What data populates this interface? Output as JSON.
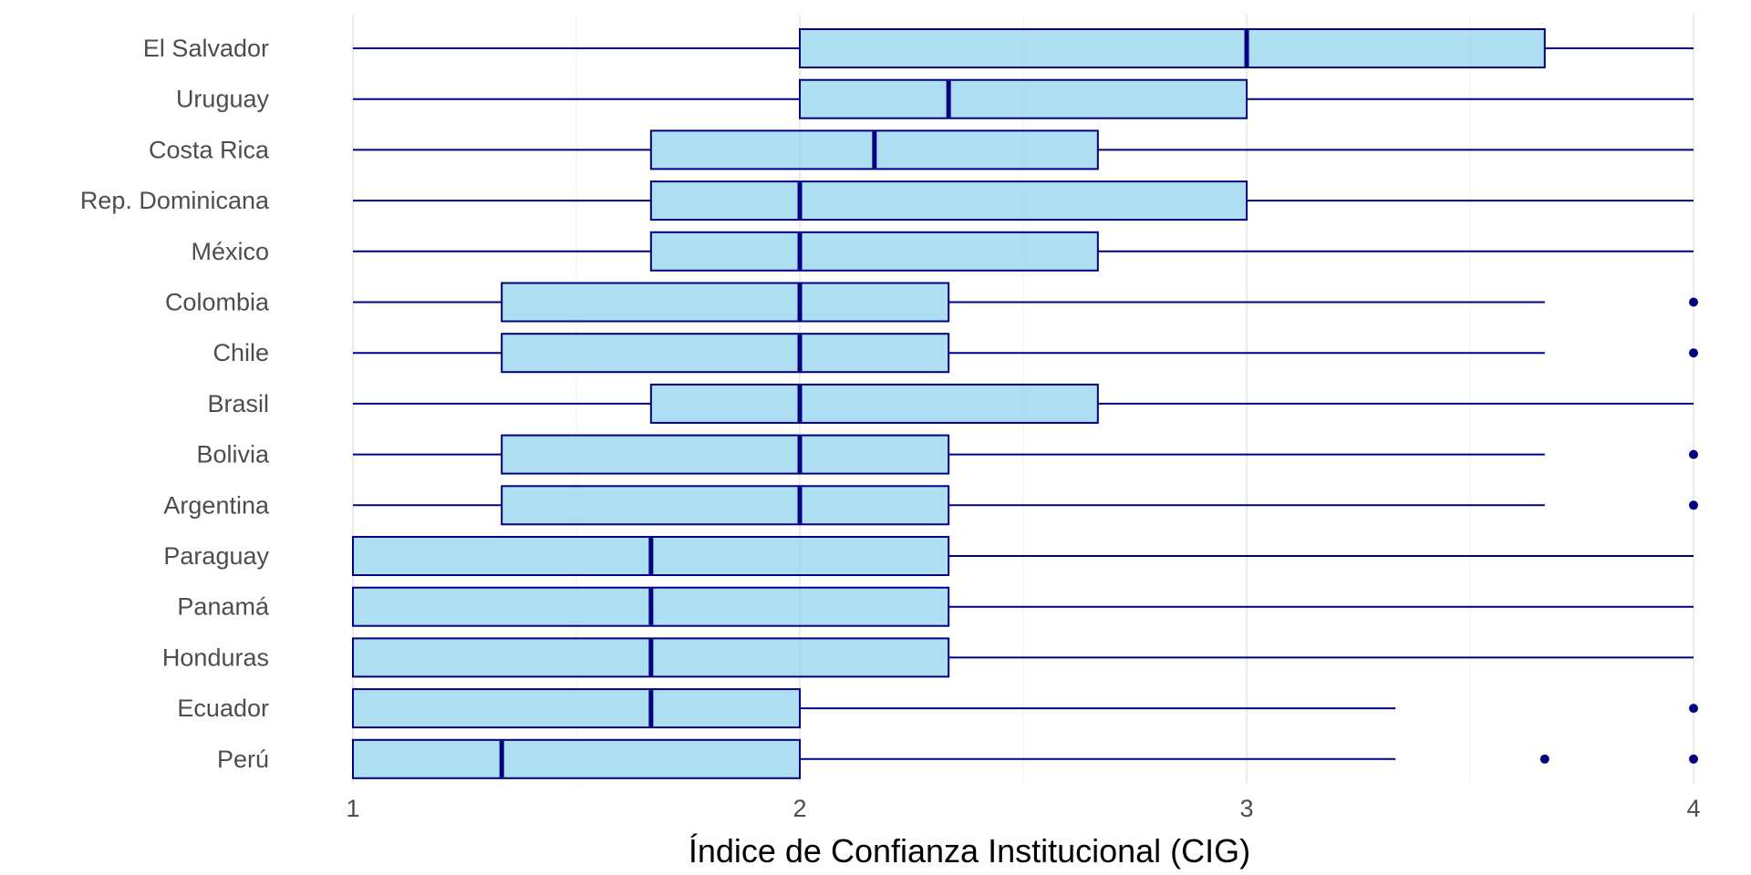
{
  "chart_data": {
    "type": "boxplot",
    "title": "",
    "xlabel": "Índice de Confianza Institucional (CIG)",
    "ylabel": "",
    "xlim": [
      1,
      4
    ],
    "xticks": [
      1,
      2,
      3,
      4
    ],
    "grid": true,
    "colors": {
      "box_fill": "#87CEEB",
      "line": "#000080",
      "grid": "#e3e3e3"
    },
    "categories": [
      "El Salvador",
      "Uruguay",
      "Costa Rica",
      "Rep. Dominicana",
      "México",
      "Colombia",
      "Chile",
      "Brasil",
      "Bolivia",
      "Argentina",
      "Paraguay",
      "Panamá",
      "Honduras",
      "Ecuador",
      "Perú"
    ],
    "boxes": [
      {
        "name": "El Salvador",
        "min": 1,
        "q1": 2,
        "median": 3,
        "q3": 3.667,
        "max": 4,
        "outliers": []
      },
      {
        "name": "Uruguay",
        "min": 1,
        "q1": 2,
        "median": 2.333,
        "q3": 3,
        "max": 4,
        "outliers": []
      },
      {
        "name": "Costa Rica",
        "min": 1,
        "q1": 1.667,
        "median": 2.167,
        "q3": 2.667,
        "max": 4,
        "outliers": []
      },
      {
        "name": "Rep. Dominicana",
        "min": 1,
        "q1": 1.667,
        "median": 2,
        "q3": 3,
        "max": 4,
        "outliers": []
      },
      {
        "name": "México",
        "min": 1,
        "q1": 1.667,
        "median": 2,
        "q3": 2.667,
        "max": 4,
        "outliers": []
      },
      {
        "name": "Colombia",
        "min": 1,
        "q1": 1.333,
        "median": 2,
        "q3": 2.333,
        "max": 3.667,
        "outliers": [
          4
        ]
      },
      {
        "name": "Chile",
        "min": 1,
        "q1": 1.333,
        "median": 2,
        "q3": 2.333,
        "max": 3.667,
        "outliers": [
          4
        ]
      },
      {
        "name": "Brasil",
        "min": 1,
        "q1": 1.667,
        "median": 2,
        "q3": 2.667,
        "max": 4,
        "outliers": []
      },
      {
        "name": "Bolivia",
        "min": 1,
        "q1": 1.333,
        "median": 2,
        "q3": 2.333,
        "max": 3.667,
        "outliers": [
          4
        ]
      },
      {
        "name": "Argentina",
        "min": 1,
        "q1": 1.333,
        "median": 2,
        "q3": 2.333,
        "max": 3.667,
        "outliers": [
          4
        ]
      },
      {
        "name": "Paraguay",
        "min": 1,
        "q1": 1,
        "median": 1.667,
        "q3": 2.333,
        "max": 4,
        "outliers": []
      },
      {
        "name": "Panamá",
        "min": 1,
        "q1": 1,
        "median": 1.667,
        "q3": 2.333,
        "max": 4,
        "outliers": []
      },
      {
        "name": "Honduras",
        "min": 1,
        "q1": 1,
        "median": 1.667,
        "q3": 2.333,
        "max": 4,
        "outliers": []
      },
      {
        "name": "Ecuador",
        "min": 1,
        "q1": 1,
        "median": 1.667,
        "q3": 2,
        "max": 3.333,
        "outliers": [
          4
        ]
      },
      {
        "name": "Perú",
        "min": 1,
        "q1": 1,
        "median": 1.333,
        "q3": 2,
        "max": 3.333,
        "outliers": [
          3.667,
          4
        ]
      }
    ]
  }
}
